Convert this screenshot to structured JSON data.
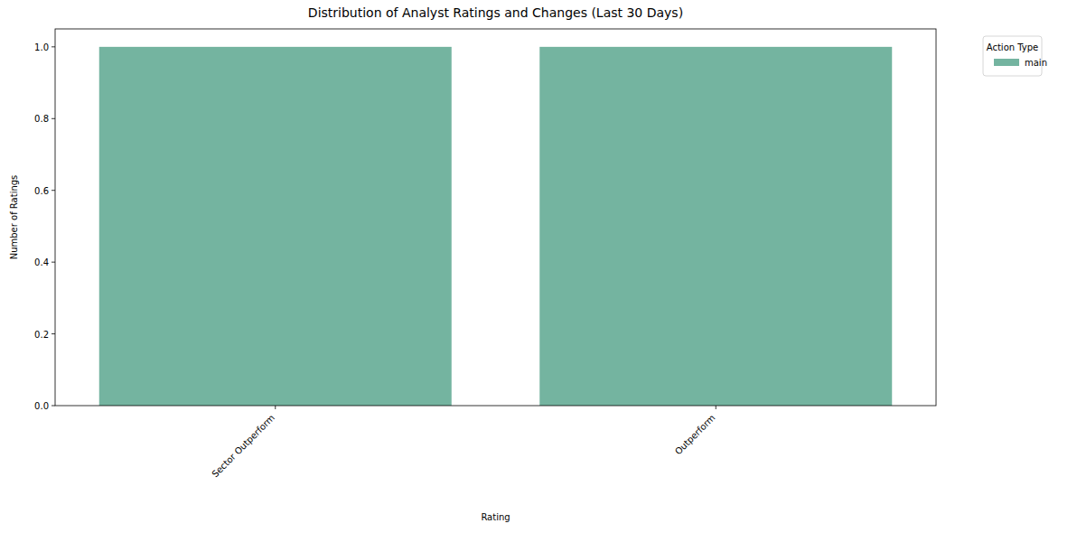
{
  "chart_data": {
    "type": "bar",
    "title": "Distribution of Analyst Ratings and Changes (Last 30 Days)",
    "x_label": "Rating",
    "y_label": "Number of Ratings",
    "categories": [
      "Sector Outperform",
      "Outperform"
    ],
    "series": [
      {
        "name": "main",
        "color": "#74b4a0",
        "values": [
          1,
          1
        ]
      }
    ],
    "legend_title": "Action Type",
    "legend": "right",
    "ylim": [
      0,
      1.05
    ],
    "yticks": [
      {
        "value": 0,
        "label": "0.0"
      },
      {
        "value": 0.2,
        "label": "0.2"
      },
      {
        "value": 0.4,
        "label": "0.4"
      },
      {
        "value": 0.6,
        "label": "0.6"
      },
      {
        "value": 0.8,
        "label": "0.8"
      },
      {
        "value": 1,
        "label": "1.0"
      }
    ],
    "grid": false
  }
}
